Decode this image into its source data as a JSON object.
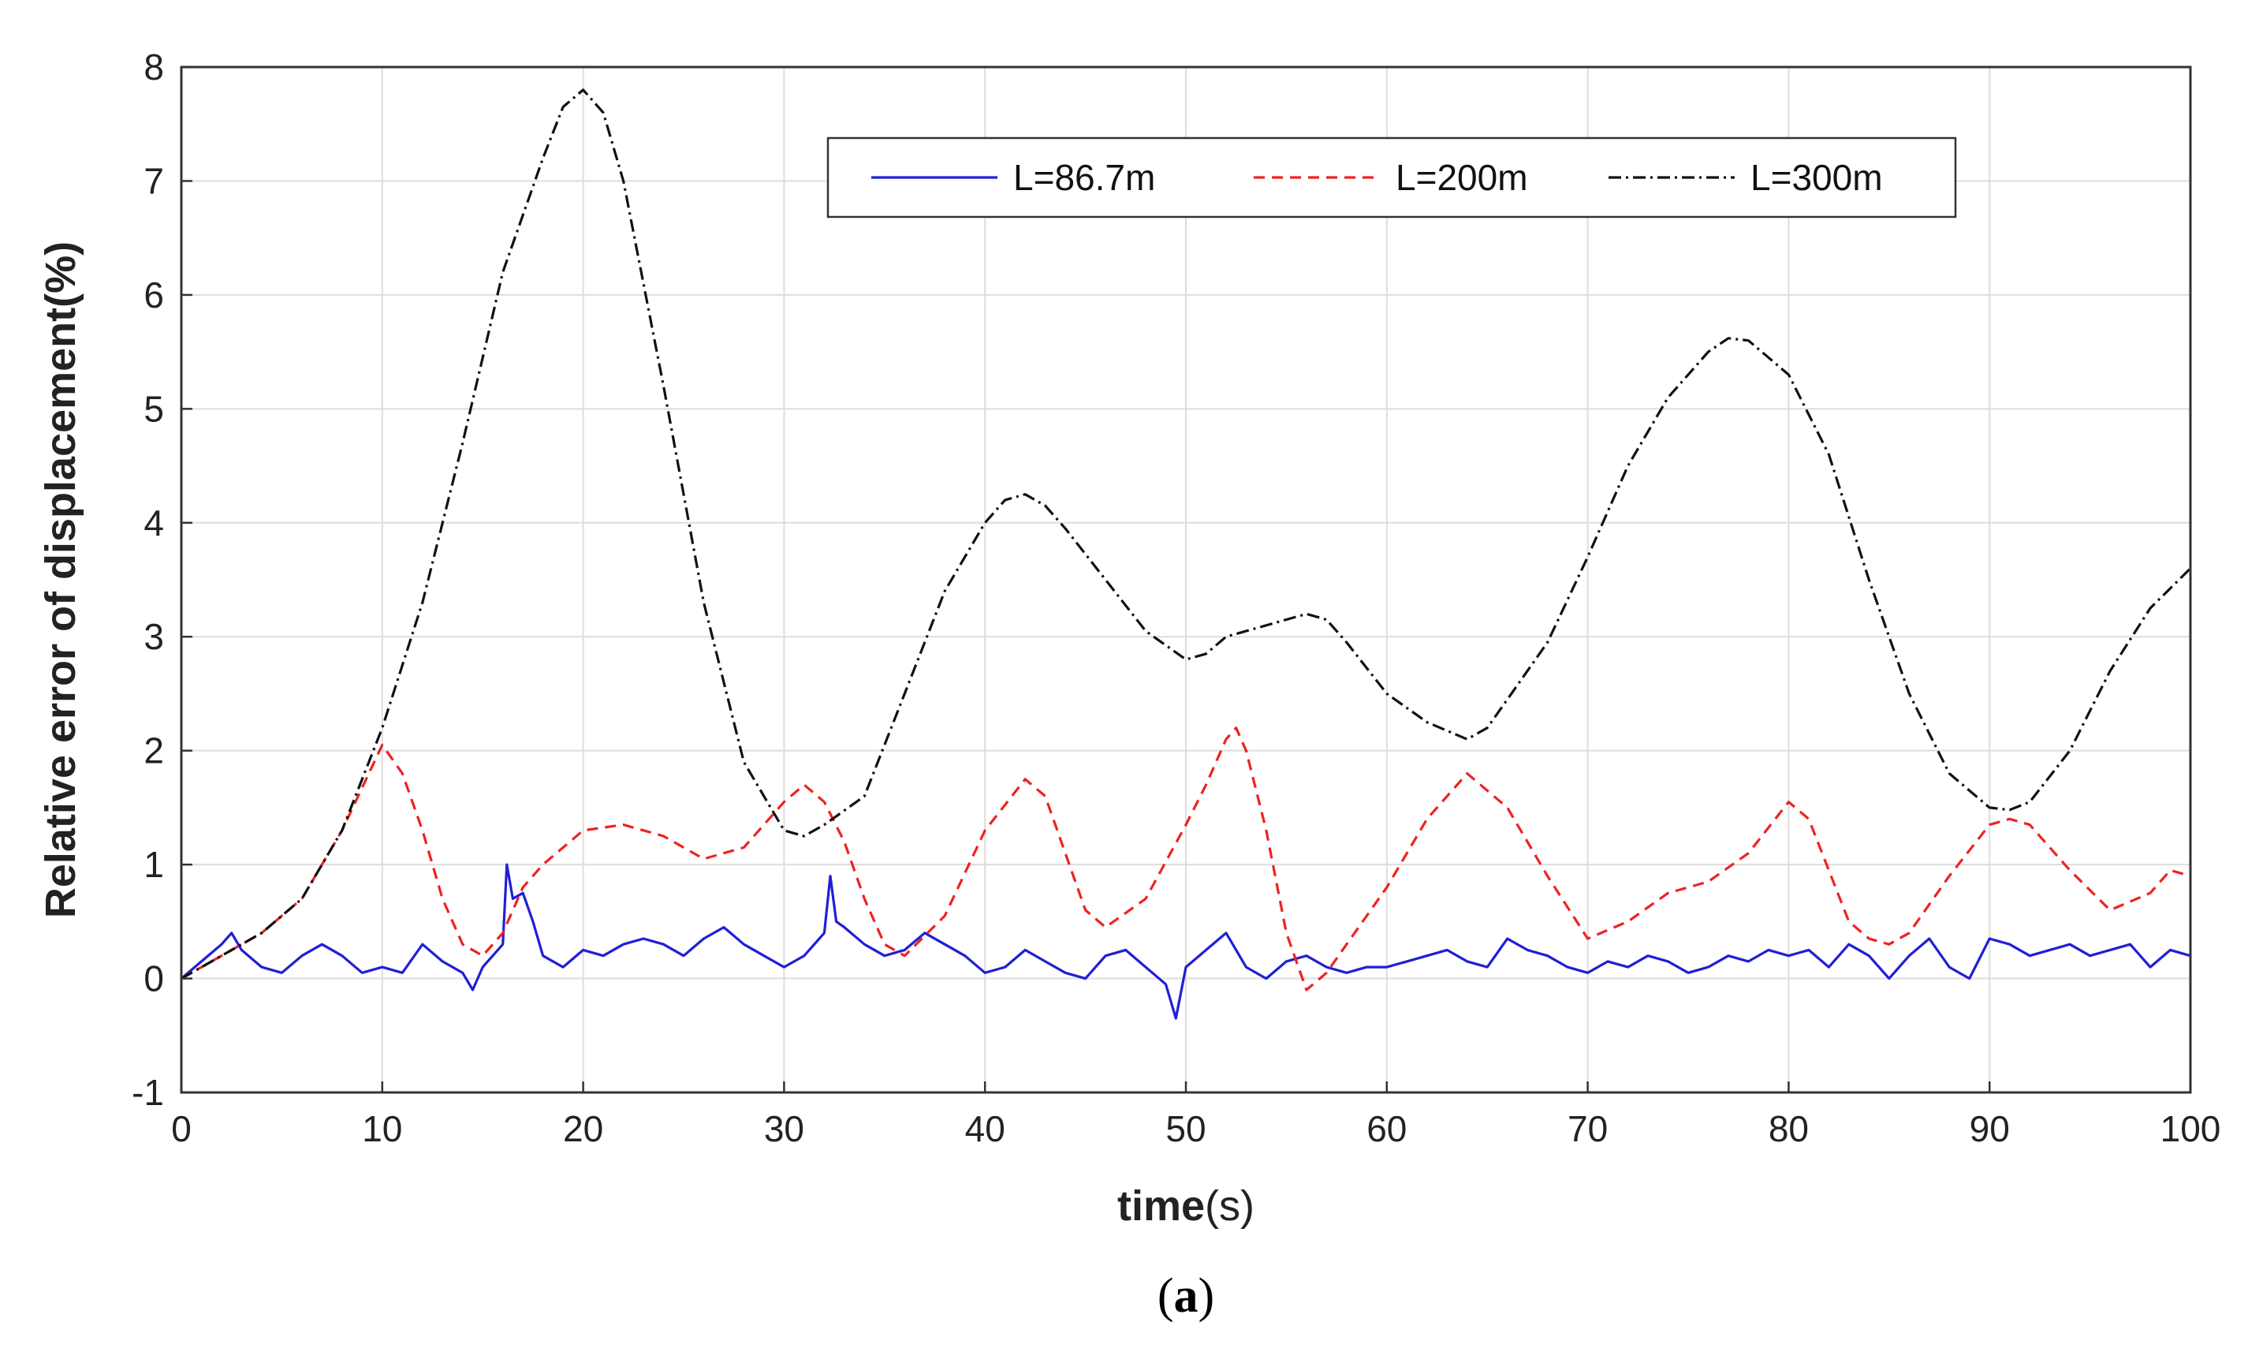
{
  "chart_data": {
    "type": "line",
    "xlabel_bold": "time",
    "xlabel_rest": "(s)",
    "ylabel": "Relative error of displacement(%)",
    "caption_open": "(",
    "caption_letter": "a",
    "caption_close": ")",
    "xlim": [
      0,
      100
    ],
    "ylim": [
      -1,
      8
    ],
    "xticks": [
      "0",
      "10",
      "20",
      "30",
      "40",
      "50",
      "60",
      "70",
      "80",
      "90",
      "100"
    ],
    "yticks": [
      "-1",
      "0",
      "1",
      "2",
      "3",
      "4",
      "5",
      "6",
      "7",
      "8"
    ],
    "grid": true,
    "legend_position": "top-right",
    "series": [
      {
        "name": "L=86.7m",
        "color": "#1f1fd6",
        "style": "solid",
        "x": [
          0,
          1,
          2,
          2.5,
          3,
          4,
          5,
          6,
          7,
          8,
          9,
          10,
          11,
          12,
          13,
          14,
          14.5,
          15,
          15.5,
          16,
          16.2,
          16.5,
          17,
          17.5,
          18,
          19,
          20,
          21,
          22,
          23,
          24,
          25,
          26,
          27,
          28,
          29,
          30,
          31,
          32,
          32.3,
          32.6,
          33,
          34,
          35,
          36,
          37,
          38,
          39,
          40,
          41,
          42,
          43,
          44,
          45,
          46,
          47,
          48,
          49,
          49.5,
          50,
          51,
          52,
          53,
          54,
          55,
          56,
          57,
          58,
          59,
          60,
          61,
          62,
          63,
          64,
          65,
          66,
          67,
          68,
          69,
          70,
          71,
          72,
          73,
          74,
          75,
          76,
          77,
          78,
          79,
          80,
          81,
          82,
          83,
          84,
          85,
          86,
          87,
          88,
          89,
          90,
          91,
          92,
          93,
          94,
          95,
          96,
          97,
          98,
          99,
          100
        ],
        "y": [
          0.0,
          0.15,
          0.3,
          0.4,
          0.25,
          0.1,
          0.05,
          0.2,
          0.3,
          0.2,
          0.05,
          0.1,
          0.05,
          0.3,
          0.15,
          0.05,
          -0.1,
          0.1,
          0.2,
          0.3,
          1.0,
          0.7,
          0.75,
          0.5,
          0.2,
          0.1,
          0.25,
          0.2,
          0.3,
          0.35,
          0.3,
          0.2,
          0.35,
          0.45,
          0.3,
          0.2,
          0.1,
          0.2,
          0.4,
          0.9,
          0.5,
          0.45,
          0.3,
          0.2,
          0.25,
          0.4,
          0.3,
          0.2,
          0.05,
          0.1,
          0.25,
          0.15,
          0.05,
          0.0,
          0.2,
          0.25,
          0.1,
          -0.05,
          -0.35,
          0.1,
          0.25,
          0.4,
          0.1,
          0.0,
          0.15,
          0.2,
          0.1,
          0.05,
          0.1,
          0.1,
          0.15,
          0.2,
          0.25,
          0.15,
          0.1,
          0.35,
          0.25,
          0.2,
          0.1,
          0.05,
          0.15,
          0.1,
          0.2,
          0.15,
          0.05,
          0.1,
          0.2,
          0.15,
          0.25,
          0.2,
          0.25,
          0.1,
          0.3,
          0.2,
          0.0,
          0.2,
          0.35,
          0.1,
          0.0,
          0.35,
          0.3,
          0.2,
          0.25,
          0.3,
          0.2,
          0.25,
          0.3,
          0.1,
          0.25,
          0.2
        ]
      },
      {
        "name": "L=200m",
        "color": "#ee2222",
        "style": "dashed",
        "x": [
          0,
          2,
          4,
          6,
          8,
          10,
          11,
          12,
          13,
          14,
          15,
          16,
          17,
          18,
          20,
          22,
          24,
          26,
          28,
          30,
          31,
          32,
          33,
          34,
          35,
          36,
          38,
          40,
          42,
          43,
          44,
          45,
          46,
          48,
          50,
          51,
          52,
          52.5,
          53,
          54,
          55,
          56,
          57,
          58,
          60,
          62,
          64,
          66,
          68,
          70,
          72,
          74,
          76,
          78,
          80,
          81,
          82,
          83,
          84,
          85,
          86,
          88,
          90,
          91,
          92,
          94,
          96,
          98,
          99,
          100
        ],
        "y": [
          0.0,
          0.2,
          0.4,
          0.7,
          1.3,
          2.05,
          1.8,
          1.3,
          0.7,
          0.3,
          0.2,
          0.4,
          0.8,
          1.0,
          1.3,
          1.35,
          1.25,
          1.05,
          1.15,
          1.55,
          1.7,
          1.55,
          1.2,
          0.7,
          0.3,
          0.2,
          0.55,
          1.3,
          1.75,
          1.6,
          1.1,
          0.6,
          0.45,
          0.7,
          1.35,
          1.7,
          2.1,
          2.2,
          2.0,
          1.3,
          0.4,
          -0.1,
          0.05,
          0.3,
          0.8,
          1.4,
          1.8,
          1.5,
          0.9,
          0.35,
          0.5,
          0.75,
          0.85,
          1.1,
          1.55,
          1.4,
          0.95,
          0.5,
          0.35,
          0.3,
          0.4,
          0.9,
          1.35,
          1.4,
          1.35,
          0.95,
          0.6,
          0.75,
          0.95,
          0.9
        ]
      },
      {
        "name": "L=300m",
        "color": "#111111",
        "style": "dashdot",
        "x": [
          0,
          2,
          4,
          6,
          8,
          10,
          12,
          14,
          16,
          18,
          19,
          20,
          21,
          22,
          24,
          26,
          28,
          30,
          31,
          32,
          34,
          36,
          38,
          40,
          41,
          42,
          43,
          44,
          46,
          48,
          50,
          51,
          52,
          54,
          56,
          57,
          58,
          60,
          62,
          64,
          65,
          66,
          68,
          70,
          72,
          74,
          76,
          77,
          78,
          79,
          80,
          82,
          84,
          86,
          88,
          90,
          91,
          92,
          94,
          96,
          98,
          100
        ],
        "y": [
          0.0,
          0.2,
          0.4,
          0.7,
          1.3,
          2.2,
          3.3,
          4.7,
          6.2,
          7.2,
          7.65,
          7.8,
          7.6,
          7.0,
          5.2,
          3.3,
          1.9,
          1.3,
          1.25,
          1.35,
          1.6,
          2.5,
          3.4,
          4.0,
          4.2,
          4.25,
          4.15,
          3.95,
          3.5,
          3.05,
          2.8,
          2.85,
          3.0,
          3.1,
          3.2,
          3.15,
          2.95,
          2.5,
          2.25,
          2.1,
          2.2,
          2.45,
          2.95,
          3.7,
          4.5,
          5.1,
          5.5,
          5.62,
          5.6,
          5.45,
          5.3,
          4.6,
          3.5,
          2.5,
          1.8,
          1.5,
          1.48,
          1.55,
          2.0,
          2.7,
          3.25,
          3.6
        ]
      }
    ]
  }
}
